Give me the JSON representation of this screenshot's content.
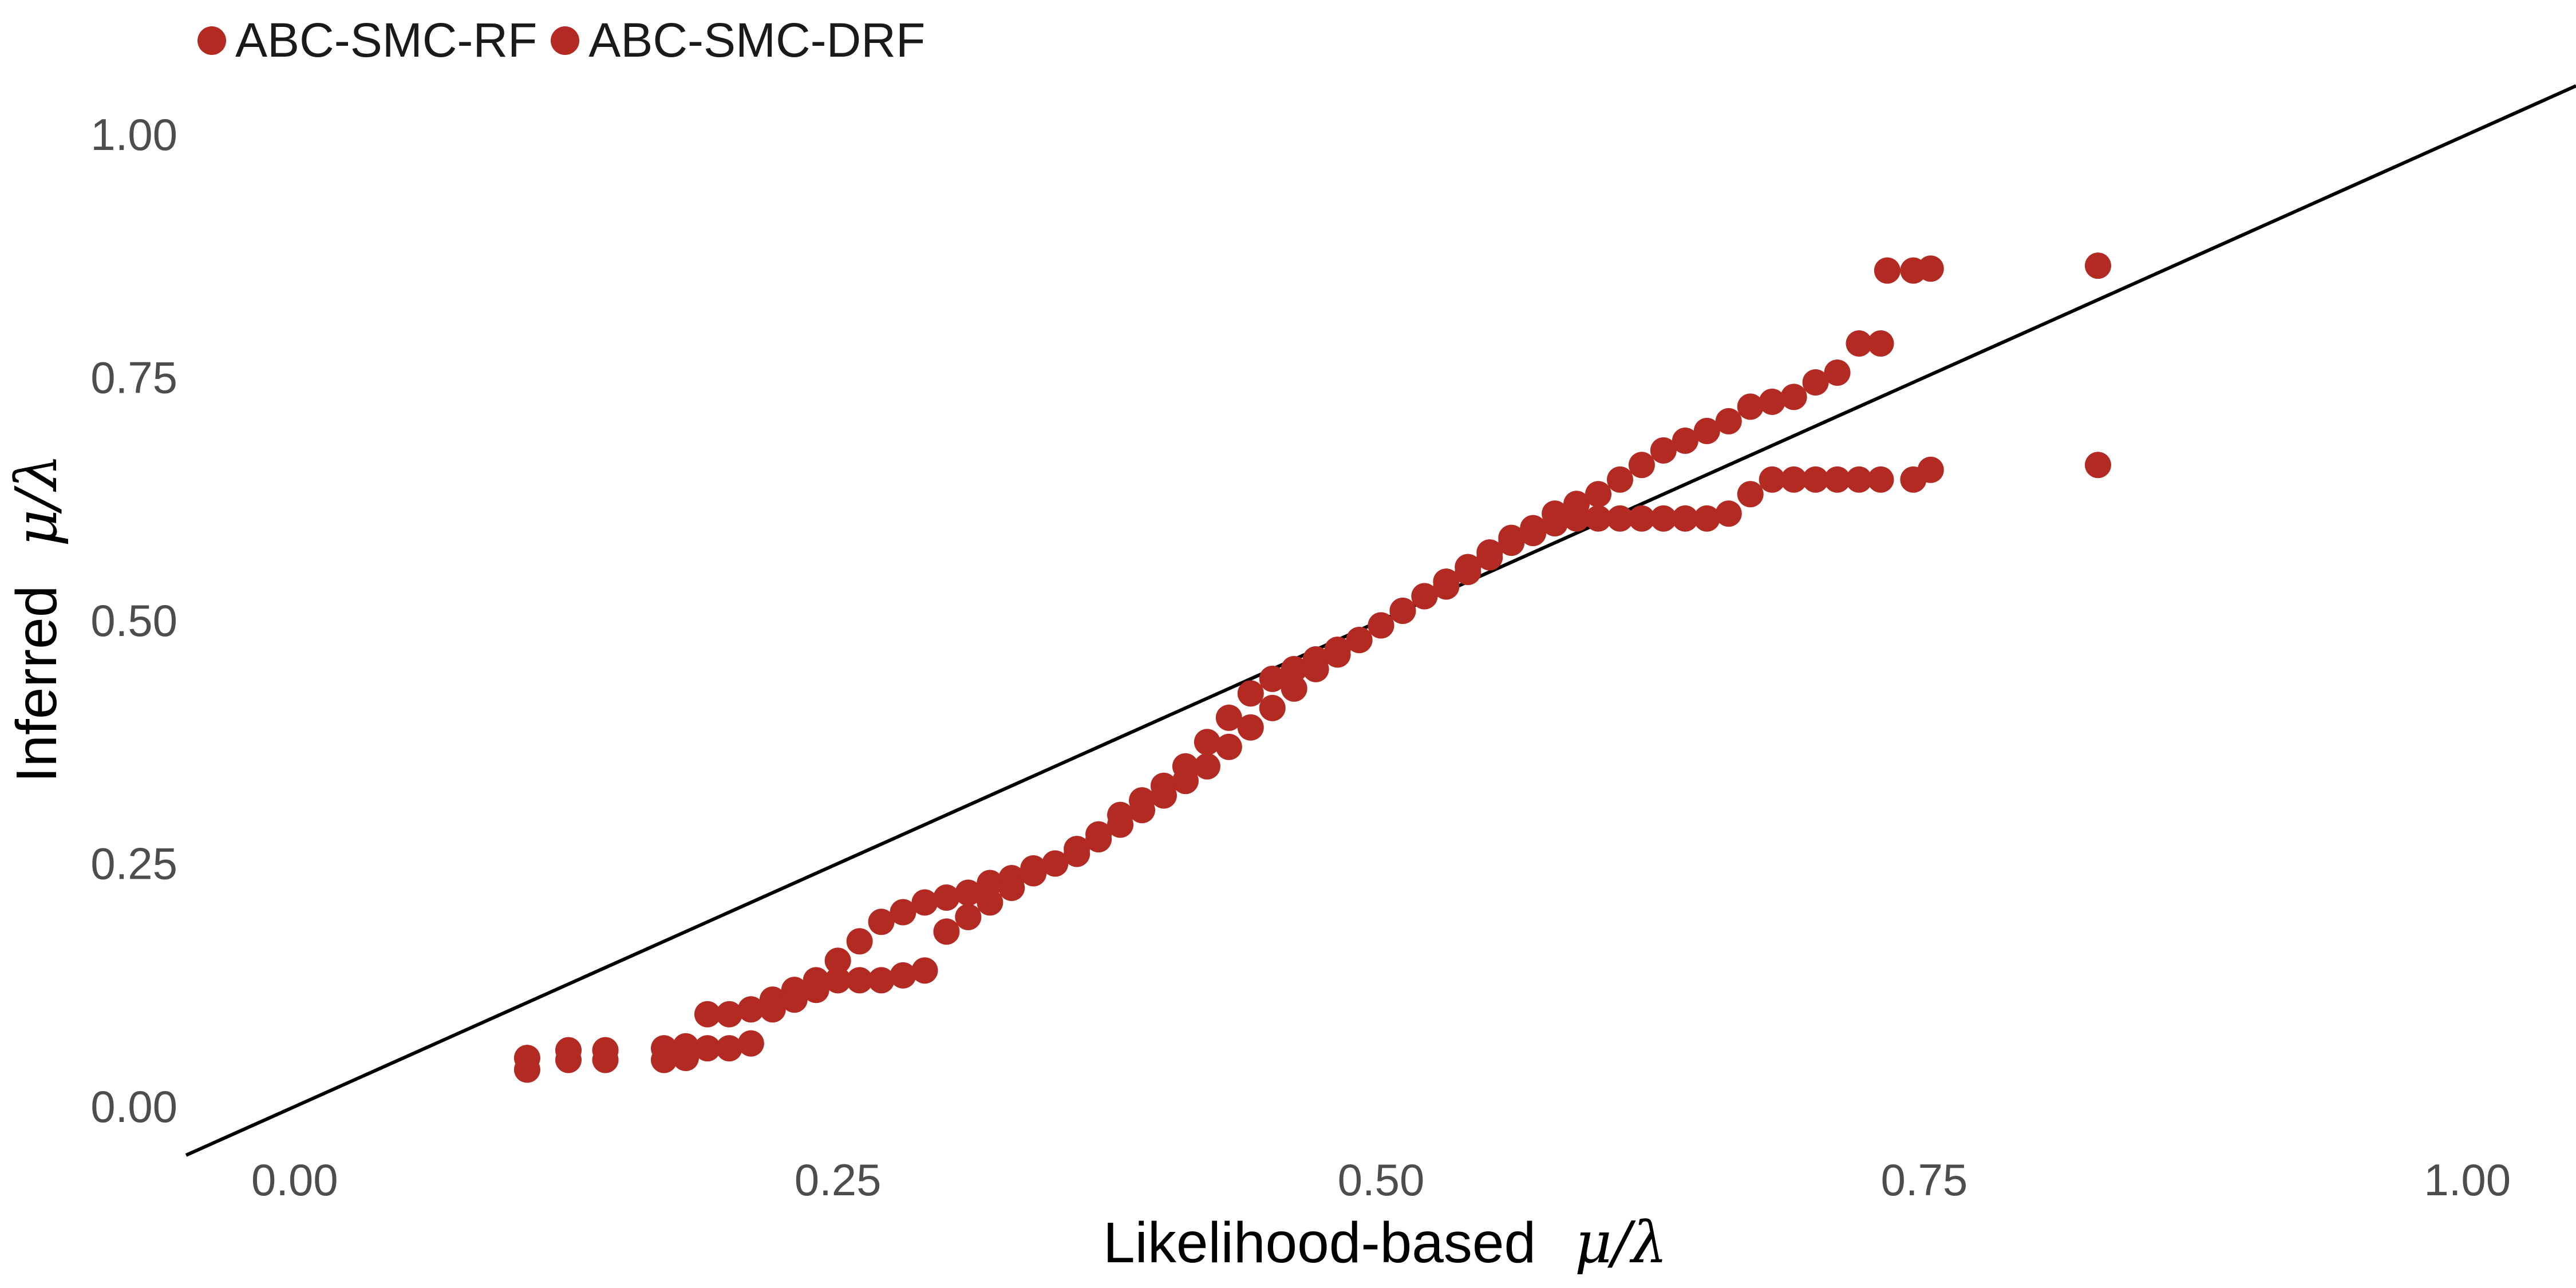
{
  "chart_data": {
    "type": "scatter",
    "xlabel": "Likelihood-based",
    "ylabel": "Inferred",
    "axis_symbol": "μ/λ",
    "xlim": [
      -0.05,
      1.05
    ],
    "ylim": [
      -0.05,
      1.05
    ],
    "x_ticks": [
      "0.00",
      "0.25",
      "0.50",
      "0.75",
      "1.00"
    ],
    "y_ticks": [
      "0.00",
      "0.25",
      "0.50",
      "0.75",
      "1.00"
    ],
    "x_tick_values": [
      0,
      0.25,
      0.5,
      0.75,
      1.0
    ],
    "y_tick_values": [
      0,
      0.25,
      0.5,
      0.75,
      1.0
    ],
    "reference_line": {
      "type": "identity",
      "color": "#000000"
    },
    "grid": false,
    "legend_position": "top-left",
    "series": [
      {
        "name": "ABC-SMC-RF",
        "color": "#b22a22",
        "points": [
          [
            0.107,
            0.05
          ],
          [
            0.126,
            0.058
          ],
          [
            0.143,
            0.058
          ],
          [
            0.17,
            0.06
          ],
          [
            0.18,
            0.062
          ],
          [
            0.19,
            0.095
          ],
          [
            0.2,
            0.095
          ],
          [
            0.21,
            0.1
          ],
          [
            0.22,
            0.11
          ],
          [
            0.23,
            0.12
          ],
          [
            0.24,
            0.13
          ],
          [
            0.25,
            0.15
          ],
          [
            0.26,
            0.17
          ],
          [
            0.27,
            0.19
          ],
          [
            0.28,
            0.2
          ],
          [
            0.29,
            0.21
          ],
          [
            0.3,
            0.215
          ],
          [
            0.31,
            0.22
          ],
          [
            0.32,
            0.23
          ],
          [
            0.33,
            0.235
          ],
          [
            0.34,
            0.245
          ],
          [
            0.35,
            0.25
          ],
          [
            0.36,
            0.265
          ],
          [
            0.37,
            0.28
          ],
          [
            0.38,
            0.3
          ],
          [
            0.39,
            0.315
          ],
          [
            0.4,
            0.33
          ],
          [
            0.41,
            0.35
          ],
          [
            0.42,
            0.375
          ],
          [
            0.43,
            0.4
          ],
          [
            0.44,
            0.425
          ],
          [
            0.45,
            0.44
          ],
          [
            0.46,
            0.45
          ],
          [
            0.47,
            0.46
          ],
          [
            0.48,
            0.47
          ],
          [
            0.49,
            0.48
          ],
          [
            0.5,
            0.495
          ],
          [
            0.51,
            0.51
          ],
          [
            0.52,
            0.525
          ],
          [
            0.53,
            0.54
          ],
          [
            0.54,
            0.555
          ],
          [
            0.55,
            0.57
          ],
          [
            0.56,
            0.585
          ],
          [
            0.57,
            0.595
          ],
          [
            0.58,
            0.61
          ],
          [
            0.59,
            0.62
          ],
          [
            0.6,
            0.63
          ],
          [
            0.61,
            0.645
          ],
          [
            0.62,
            0.66
          ],
          [
            0.63,
            0.675
          ],
          [
            0.64,
            0.685
          ],
          [
            0.65,
            0.695
          ],
          [
            0.66,
            0.705
          ],
          [
            0.67,
            0.72
          ],
          [
            0.68,
            0.725
          ],
          [
            0.69,
            0.73
          ],
          [
            0.7,
            0.745
          ],
          [
            0.71,
            0.755
          ],
          [
            0.72,
            0.785
          ],
          [
            0.73,
            0.785
          ],
          [
            0.733,
            0.86
          ],
          [
            0.745,
            0.86
          ],
          [
            0.753,
            0.862
          ],
          [
            0.83,
            0.865
          ]
        ]
      },
      {
        "name": "ABC-SMC-DRF",
        "color": "#b22a22",
        "points": [
          [
            0.107,
            0.038
          ],
          [
            0.126,
            0.048
          ],
          [
            0.143,
            0.048
          ],
          [
            0.17,
            0.048
          ],
          [
            0.18,
            0.05
          ],
          [
            0.19,
            0.06
          ],
          [
            0.2,
            0.06
          ],
          [
            0.21,
            0.065
          ],
          [
            0.22,
            0.1
          ],
          [
            0.23,
            0.11
          ],
          [
            0.24,
            0.12
          ],
          [
            0.25,
            0.13
          ],
          [
            0.26,
            0.13
          ],
          [
            0.27,
            0.13
          ],
          [
            0.28,
            0.135
          ],
          [
            0.29,
            0.14
          ],
          [
            0.3,
            0.18
          ],
          [
            0.31,
            0.195
          ],
          [
            0.32,
            0.21
          ],
          [
            0.33,
            0.225
          ],
          [
            0.34,
            0.24
          ],
          [
            0.35,
            0.25
          ],
          [
            0.36,
            0.26
          ],
          [
            0.37,
            0.275
          ],
          [
            0.38,
            0.29
          ],
          [
            0.39,
            0.305
          ],
          [
            0.4,
            0.32
          ],
          [
            0.41,
            0.335
          ],
          [
            0.42,
            0.35
          ],
          [
            0.43,
            0.37
          ],
          [
            0.44,
            0.39
          ],
          [
            0.45,
            0.41
          ],
          [
            0.46,
            0.43
          ],
          [
            0.47,
            0.45
          ],
          [
            0.48,
            0.465
          ],
          [
            0.49,
            0.48
          ],
          [
            0.5,
            0.495
          ],
          [
            0.51,
            0.51
          ],
          [
            0.52,
            0.525
          ],
          [
            0.53,
            0.535
          ],
          [
            0.54,
            0.55
          ],
          [
            0.55,
            0.565
          ],
          [
            0.56,
            0.58
          ],
          [
            0.57,
            0.59
          ],
          [
            0.58,
            0.6
          ],
          [
            0.59,
            0.605
          ],
          [
            0.6,
            0.605
          ],
          [
            0.61,
            0.605
          ],
          [
            0.62,
            0.605
          ],
          [
            0.63,
            0.605
          ],
          [
            0.64,
            0.605
          ],
          [
            0.65,
            0.605
          ],
          [
            0.66,
            0.61
          ],
          [
            0.67,
            0.63
          ],
          [
            0.68,
            0.645
          ],
          [
            0.69,
            0.645
          ],
          [
            0.7,
            0.645
          ],
          [
            0.71,
            0.645
          ],
          [
            0.72,
            0.645
          ],
          [
            0.73,
            0.645
          ],
          [
            0.745,
            0.645
          ],
          [
            0.753,
            0.655
          ],
          [
            0.83,
            0.66
          ]
        ]
      }
    ]
  }
}
